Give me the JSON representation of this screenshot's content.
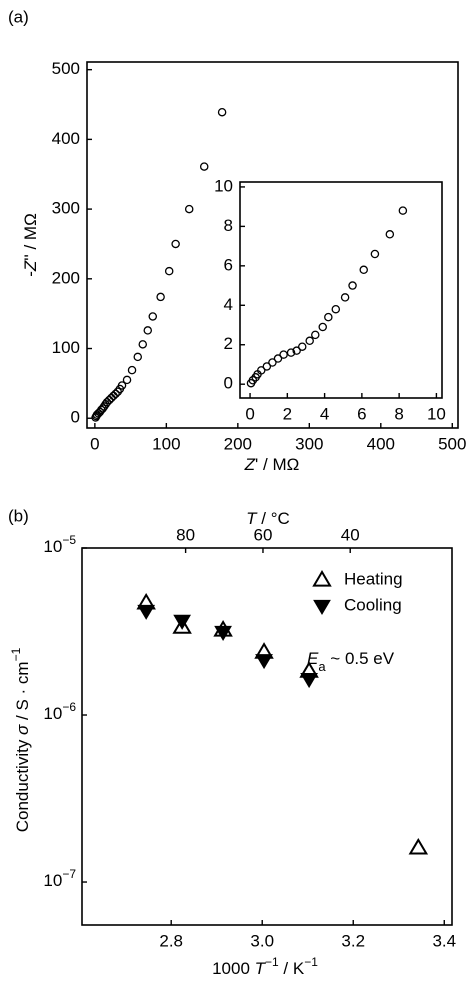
{
  "chart_data": [
    {
      "type": "scatter",
      "panel_label": "(a)",
      "xlabel": [
        {
          "t": "Z",
          "style": "italic"
        },
        {
          "t": "' / MΩ"
        }
      ],
      "ylabel": [
        {
          "t": "-"
        },
        {
          "t": "Z",
          "style": "italic"
        },
        {
          "t": "'' / MΩ"
        }
      ],
      "xlim": [
        -11,
        508
      ],
      "ylim": [
        -14,
        511
      ],
      "xticks": [
        0,
        100,
        200,
        300,
        400,
        500
      ],
      "yticks": [
        0,
        100,
        200,
        300,
        400,
        500
      ],
      "series": [
        {
          "name": null,
          "color": "#000000",
          "marker": "circle-open",
          "x": [
            1,
            2,
            3,
            5,
            7,
            9,
            11,
            13,
            15,
            17,
            20,
            23,
            26,
            29,
            32,
            35,
            38,
            45,
            52,
            60,
            67,
            74,
            81,
            92,
            104,
            113,
            132,
            153,
            178
          ],
          "values": [
            1,
            3,
            5,
            7,
            9,
            12,
            14,
            17,
            20,
            23,
            26,
            29,
            32,
            35,
            38,
            42,
            47,
            55,
            69,
            88,
            106,
            126,
            146,
            174,
            211,
            250,
            300,
            361,
            439
          ]
        }
      ]
    },
    {
      "type": "scatter",
      "xlim": [
        -0.54,
        10.3
      ],
      "ylim": [
        -0.7,
        10.25
      ],
      "xticks": [
        0,
        2,
        4,
        6,
        8,
        10
      ],
      "yticks": [
        0,
        2,
        4,
        6,
        8,
        10
      ],
      "series": [
        {
          "name": null,
          "color": "#000000",
          "marker": "circle-open",
          "x": [
            0.05,
            0.15,
            0.3,
            0.4,
            0.6,
            0.9,
            1.2,
            1.5,
            1.8,
            2.2,
            2.5,
            2.8,
            3.2,
            3.5,
            3.9,
            4.2,
            4.6,
            5.1,
            5.5,
            6.1,
            6.7,
            7.5,
            8.2
          ],
          "values": [
            0.05,
            0.2,
            0.35,
            0.5,
            0.7,
            0.9,
            1.1,
            1.3,
            1.5,
            1.6,
            1.7,
            1.9,
            2.2,
            2.5,
            2.9,
            3.4,
            3.8,
            4.4,
            5.0,
            5.8,
            6.6,
            7.6,
            8.8
          ]
        }
      ]
    },
    {
      "type": "scatter",
      "panel_label": "(b)",
      "xlabel": [
        {
          "t": "1000 "
        },
        {
          "t": "T",
          "style": "italic"
        },
        {
          "t": "−1",
          "style": "sup"
        },
        {
          "t": " / K"
        },
        {
          "t": "−1",
          "style": "sup"
        }
      ],
      "ylabel": [
        {
          "t": "Conductivity "
        },
        {
          "t": "σ",
          "style": "italic"
        },
        {
          "t": " / S · cm"
        },
        {
          "t": "−1",
          "style": "sup"
        }
      ],
      "x2label": [
        {
          "t": "T",
          "style": "italic"
        },
        {
          "t": " / °C"
        }
      ],
      "xlim": [
        2.604,
        3.417
      ],
      "ylim": [
        5.53e-08,
        1e-05
      ],
      "ylog": true,
      "xticks": [
        2.8,
        {
          "value": 3,
          "label": "3.0"
        },
        3.2,
        3.4
      ],
      "x2ticks": [
        80,
        60,
        40
      ],
      "yticks": [
        {
          "value": 1e-05,
          "label": [
            "10",
            "−5"
          ]
        },
        {
          "value": 1e-06,
          "label": [
            "10",
            "−6"
          ]
        },
        {
          "value": 1e-07,
          "label": [
            "10",
            "−7"
          ]
        }
      ],
      "legend": "upper right",
      "annotation": [
        {
          "t": "E",
          "style": "italic"
        },
        {
          "t": "a",
          "style": "sub"
        },
        {
          "t": " ~ 0.5 eV"
        }
      ],
      "series": [
        {
          "name": "Heating",
          "color": "#000000",
          "marker": "triangle-up-open",
          "x": [
            2.745,
            2.824,
            2.914,
            3.004,
            3.103,
            3.343
          ],
          "values": [
            4.69e-06,
            3.36e-06,
            3.23e-06,
            2.38e-06,
            1.83e-06,
            1.6e-07
          ]
        },
        {
          "name": "Cooling",
          "color": "#000000",
          "marker": "triangle-down-filled",
          "x": [
            2.745,
            2.824,
            2.914,
            3.004,
            3.103
          ],
          "values": [
            4.2e-06,
            3.66e-06,
            3.14e-06,
            2.13e-06,
            1.64e-06
          ]
        }
      ]
    }
  ]
}
